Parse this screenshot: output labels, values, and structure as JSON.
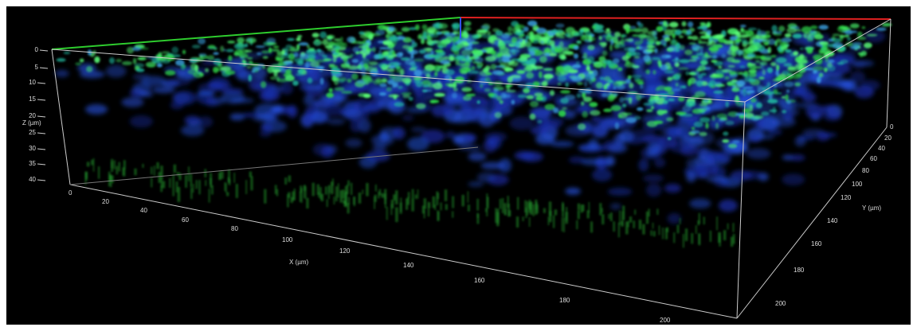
{
  "axes": {
    "z": {
      "label": "Z (µm)",
      "ticks": [
        0,
        5,
        10,
        15,
        20,
        25,
        30,
        35,
        40
      ]
    },
    "x": {
      "label": "X (µm)",
      "ticks": [
        0,
        20,
        40,
        60,
        80,
        100,
        120,
        140,
        160,
        180,
        200
      ]
    },
    "y": {
      "label": "Y (µm)",
      "ticks": [
        0,
        20,
        40,
        60,
        80,
        100,
        120,
        140,
        160,
        180,
        200
      ]
    }
  }
}
